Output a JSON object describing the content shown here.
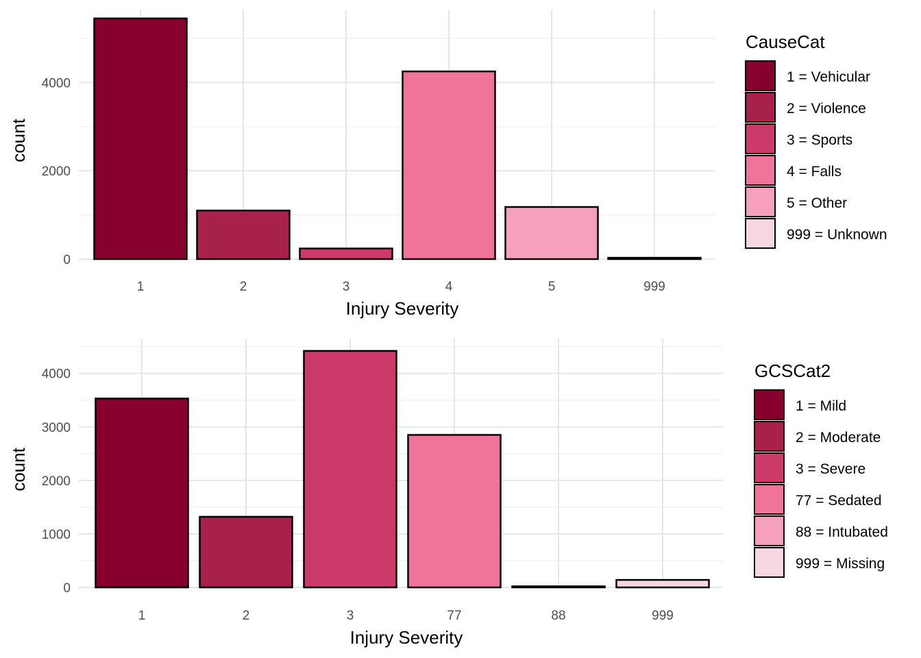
{
  "chart_data": [
    {
      "type": "bar",
      "categories": [
        "1",
        "2",
        "3",
        "4",
        "5",
        "999"
      ],
      "values": [
        5450,
        1100,
        240,
        4250,
        1180,
        30
      ],
      "colors": [
        "#87002f",
        "#a8214b",
        "#cc3a69",
        "#ee7499",
        "#f5a1bc",
        "#f6d7e2"
      ],
      "xlabel": "Injury Severity",
      "ylabel": "count",
      "yticks": [
        0,
        2000,
        4000
      ],
      "ylim": [
        0,
        5650
      ],
      "grid": true,
      "legend": {
        "title": "CauseCat",
        "position": "right",
        "labels": [
          "1 = Vehicular",
          "2 = Violence",
          "3 = Sports",
          "4 = Falls",
          "5 = Other",
          "999 = Unknown"
        ]
      }
    },
    {
      "type": "bar",
      "categories": [
        "1",
        "2",
        "3",
        "77",
        "88",
        "999"
      ],
      "values": [
        3530,
        1320,
        4420,
        2850,
        20,
        140
      ],
      "colors": [
        "#87002f",
        "#a8214b",
        "#cc3a69",
        "#ee7499",
        "#f5a1bc",
        "#f6d7e2"
      ],
      "xlabel": "Injury Severity",
      "ylabel": "count",
      "yticks": [
        0,
        1000,
        2000,
        3000,
        4000
      ],
      "ylim": [
        0,
        4650
      ],
      "grid": true,
      "legend": {
        "title": "GCSCat2",
        "position": "right",
        "labels": [
          "1 = Mild",
          "2 = Moderate",
          "3 = Severe",
          "77 = Sedated",
          "88 = Intubated",
          "999 = Missing"
        ]
      }
    }
  ]
}
